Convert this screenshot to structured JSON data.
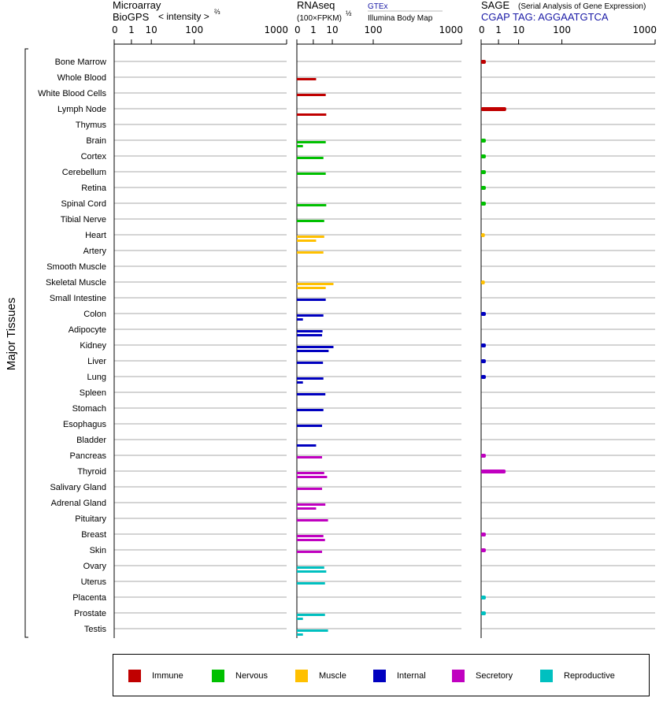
{
  "headers": {
    "microarray": {
      "line1": "Microarray",
      "line2": "BioGPS",
      "intensity": "< intensity >",
      "intensity_exp": "⅔"
    },
    "rnaseq": {
      "title": "RNAseq",
      "units": "(100×FPKM)",
      "units_exp": "½",
      "src1": "GTEx",
      "src2": "Illumina Body Map"
    },
    "sage": {
      "title": "SAGE",
      "subtitle": "(Serial Analysis of Gene Expression)",
      "tag": "CGAP TAG: AGGAATGTCA"
    }
  },
  "axis_ticks": [
    "0",
    "1",
    "10",
    "100",
    "1000"
  ],
  "y_group_label": "Major Tissues",
  "colors": {
    "Immune": "#c00000",
    "Nervous": "#00c000",
    "Muscle": "#ffc000",
    "Internal": "#0000c0",
    "Secretory": "#c000c0",
    "Reproductive": "#00c0c0"
  },
  "legend": [
    {
      "label": "Immune",
      "color": "#c00000"
    },
    {
      "label": "Nervous",
      "color": "#00c000"
    },
    {
      "label": "Muscle",
      "color": "#ffc000"
    },
    {
      "label": "Internal",
      "color": "#0000c0"
    },
    {
      "label": "Secretory",
      "color": "#c000c0"
    },
    {
      "label": "Reproductive",
      "color": "#00c0c0"
    }
  ],
  "chart_data": {
    "type": "bar",
    "x_scale": "power",
    "xlim": [
      0,
      1000
    ],
    "categories": [
      "Bone Marrow",
      "Whole Blood",
      "White Blood Cells",
      "Lymph Node",
      "Thymus",
      "Brain",
      "Cortex",
      "Cerebellum",
      "Retina",
      "Spinal Cord",
      "Tibial Nerve",
      "Heart",
      "Artery",
      "Smooth Muscle",
      "Skeletal Muscle",
      "Small Intestine",
      "Colon",
      "Adipocyte",
      "Kidney",
      "Liver",
      "Lung",
      "Spleen",
      "Stomach",
      "Esophagus",
      "Bladder",
      "Pancreas",
      "Thyroid",
      "Salivary Gland",
      "Adrenal Gland",
      "Pituitary",
      "Breast",
      "Skin",
      "Ovary",
      "Uterus",
      "Placenta",
      "Prostate",
      "Testis"
    ],
    "groups": [
      "Immune",
      "Immune",
      "Immune",
      "Immune",
      "Immune",
      "Nervous",
      "Nervous",
      "Nervous",
      "Nervous",
      "Nervous",
      "Nervous",
      "Muscle",
      "Muscle",
      "Muscle",
      "Muscle",
      "Internal",
      "Internal",
      "Internal",
      "Internal",
      "Internal",
      "Internal",
      "Internal",
      "Internal",
      "Internal",
      "Internal",
      "Secretory",
      "Secretory",
      "Secretory",
      "Secretory",
      "Secretory",
      "Secretory",
      "Secretory",
      "Reproductive",
      "Reproductive",
      "Reproductive",
      "Reproductive",
      "Reproductive"
    ],
    "series": [
      {
        "name": "Microarray",
        "values": [
          0,
          0,
          0,
          0,
          0,
          0,
          0,
          0,
          0,
          0,
          0,
          0,
          0,
          0,
          0,
          0,
          0,
          0,
          0,
          0,
          0,
          0,
          0,
          0,
          0,
          0,
          0,
          0,
          0,
          0,
          0,
          0,
          0,
          0,
          0,
          0,
          0
        ]
      },
      {
        "name": "GTEx",
        "values": [
          0,
          1.6,
          5.4,
          0,
          0,
          5.4,
          4.2,
          5.4,
          0,
          5.7,
          4.6,
          4.6,
          4.2,
          0,
          11,
          5.4,
          4.2,
          3.8,
          11,
          4,
          4.2,
          5.2,
          4.2,
          3.6,
          0,
          3.6,
          4.6,
          3.6,
          5.2,
          6.8,
          4.2,
          3.6,
          4.6,
          5,
          0,
          5,
          6.8
        ]
      },
      {
        "name": "Illumina Body Map",
        "values": [
          0,
          0,
          0,
          5.7,
          0,
          0.05,
          0,
          0,
          0,
          0,
          0,
          1.6,
          0,
          0,
          5.4,
          0,
          0.05,
          3.6,
          7.2,
          0,
          0.05,
          0,
          0,
          0,
          1.6,
          0,
          6.2,
          0,
          1.6,
          0,
          5,
          0,
          5.7,
          0,
          0,
          0.05,
          0.05
        ]
      },
      {
        "name": "SAGE",
        "values": [
          0.02,
          0,
          0,
          3,
          0,
          0.02,
          0.02,
          0.02,
          0.02,
          0.02,
          0,
          0.01,
          0,
          0,
          0.01,
          0,
          0.02,
          0,
          0.02,
          0.02,
          0.02,
          0,
          0,
          0,
          0,
          0.02,
          2.8,
          0,
          0,
          0,
          0.02,
          0.02,
          0,
          0,
          0.02,
          0.02,
          0
        ]
      }
    ]
  }
}
